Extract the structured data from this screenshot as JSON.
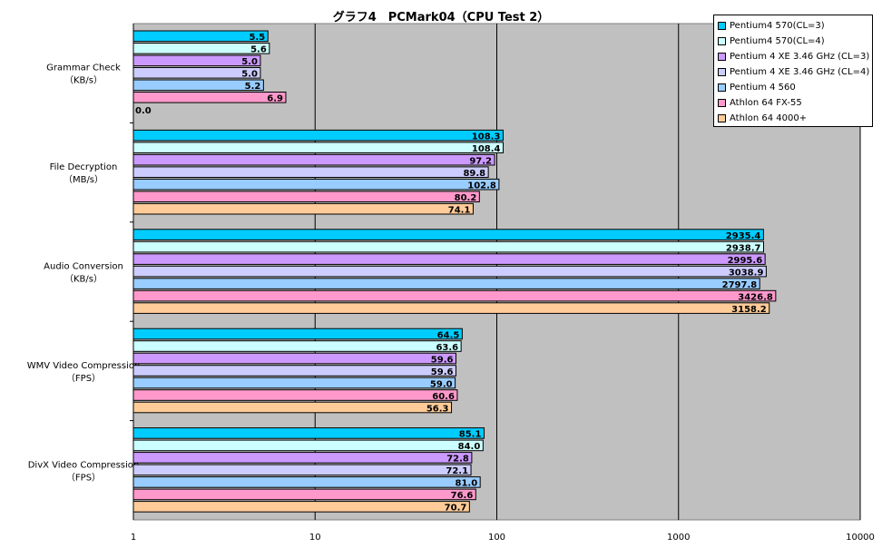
{
  "chart_data": {
    "type": "bar",
    "orientation": "horizontal",
    "title": "グラフ4　PCMark04（CPU Test 2）",
    "x_scale": "log",
    "xlim": [
      1,
      10000
    ],
    "x_ticks": [
      "1",
      "10",
      "100",
      "1000",
      "10000"
    ],
    "categories": [
      [
        "Grammar Check",
        "（KB/s）"
      ],
      [
        "File Decryption",
        "（MB/s）"
      ],
      [
        "Audio Conversion",
        "（KB/s）"
      ],
      [
        "WMV Video Compression",
        "（FPS）"
      ],
      [
        "DivX Video Compression",
        "（FPS）"
      ]
    ],
    "series": [
      {
        "name": "Pentium4 570(CL=3)",
        "color": "#00ccff",
        "values": [
          5.5,
          108.3,
          2935.4,
          64.5,
          85.1
        ],
        "labels": [
          "5.5",
          "108.3",
          "2935.4",
          "64.5",
          "85.1"
        ]
      },
      {
        "name": "Pentium4 570(CL=4)",
        "color": "#ccffff",
        "values": [
          5.6,
          108.4,
          2938.7,
          63.6,
          84.0
        ],
        "labels": [
          "5.6",
          "108.4",
          "2938.7",
          "63.6",
          "84.0"
        ]
      },
      {
        "name": "Pentium 4 XE 3.46 GHz (CL=3)",
        "color": "#cc99ff",
        "values": [
          5.0,
          97.2,
          2995.6,
          59.6,
          72.8
        ],
        "labels": [
          "5.0",
          "97.2",
          "2995.6",
          "59.6",
          "72.8"
        ]
      },
      {
        "name": "Pentium 4 XE 3.46 GHz (CL=4)",
        "color": "#ccccff",
        "values": [
          5.0,
          89.8,
          3038.9,
          59.6,
          72.1
        ],
        "labels": [
          "5.0",
          "89.8",
          "3038.9",
          "59.6",
          "72.1"
        ]
      },
      {
        "name": "Pentium 4 560",
        "color": "#99ccff",
        "values": [
          5.2,
          102.8,
          2797.8,
          59.0,
          81.0
        ],
        "labels": [
          "5.2",
          "102.8",
          "2797.8",
          "59.0",
          "81.0"
        ]
      },
      {
        "name": "Athlon 64 FX-55",
        "color": "#ff99cc",
        "values": [
          6.9,
          80.2,
          3426.8,
          60.6,
          76.6
        ],
        "labels": [
          "6.9",
          "80.2",
          "3426.8",
          "60.6",
          "76.6"
        ]
      },
      {
        "name": "Athlon 64 4000+",
        "color": "#ffcc99",
        "values": [
          0.0,
          74.1,
          3158.2,
          56.3,
          70.7
        ],
        "labels": [
          "0.0",
          "74.1",
          "3158.2",
          "56.3",
          "70.7"
        ]
      }
    ],
    "plot_background": "#c0c0c0",
    "grid": true,
    "legend_position": "top-right"
  }
}
